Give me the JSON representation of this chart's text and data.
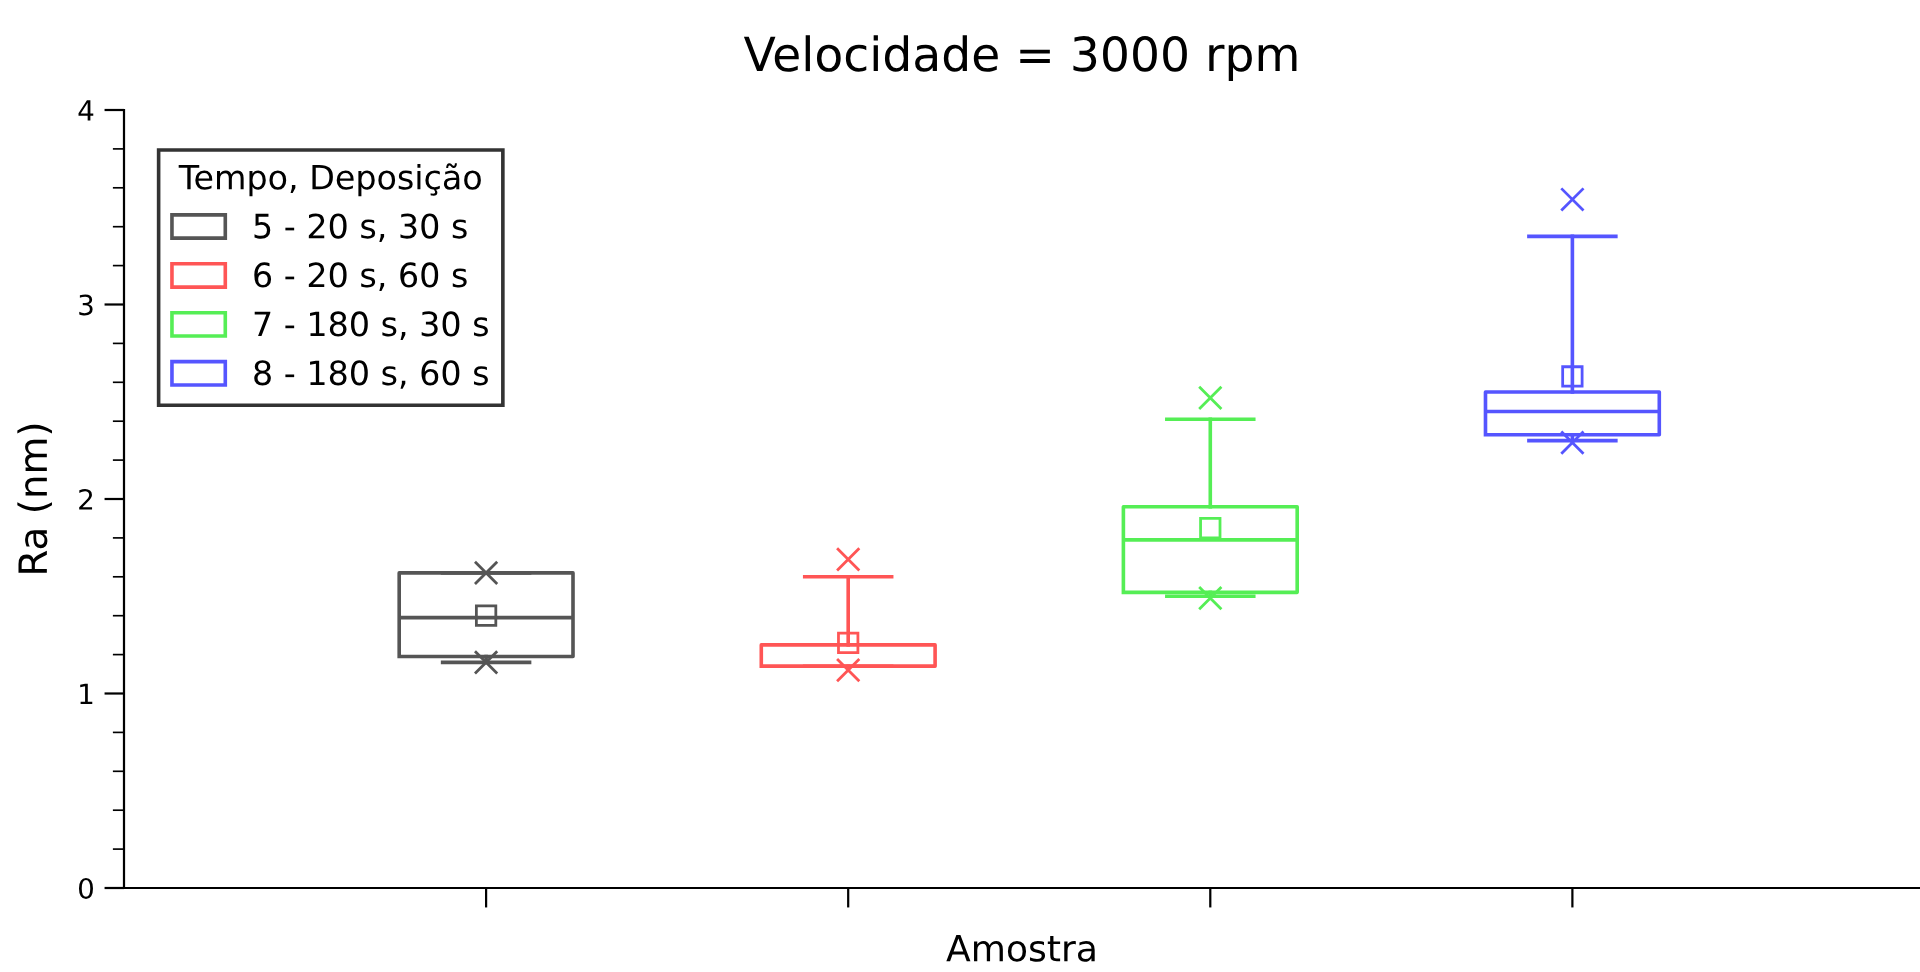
{
  "chart_data": {
    "type": "box",
    "title": "Velocidade = 3000 rpm",
    "xlabel": "Amostra",
    "ylabel": "Ra (nm)",
    "legend_title": "Tempo, Deposição",
    "legend": "top left",
    "categories": [
      null,
      null,
      null,
      null
    ],
    "ylim": [
      0,
      4
    ],
    "yticks": [
      0,
      1,
      2,
      3,
      4
    ],
    "grid": false,
    "series": [
      {
        "name": "5 - 20 s, 30 s",
        "color": "#555555",
        "boxes": [
          {
            "low": 1.16,
            "q1": 1.19,
            "median": 1.39,
            "q3": 1.62,
            "high": 1.62,
            "mean": 1.4,
            "outliers": [
              1.62,
              1.16
            ]
          },
          null,
          null,
          null
        ]
      },
      {
        "name": "6 - 20 s, 60 s",
        "color": "#ff5555",
        "boxes": [
          null,
          {
            "low": 1.14,
            "q1": 1.14,
            "median": 1.14,
            "q3": 1.25,
            "high": 1.6,
            "mean": 1.26,
            "outliers": [
              1.69,
              1.12
            ]
          },
          null,
          null
        ]
      },
      {
        "name": "7 - 180 s, 30 s",
        "color": "#55ee55",
        "boxes": [
          null,
          null,
          {
            "low": 1.5,
            "q1": 1.52,
            "median": 1.79,
            "q3": 1.96,
            "high": 2.41,
            "mean": 1.85,
            "outliers": [
              2.52,
              1.49
            ]
          },
          null
        ]
      },
      {
        "name": "8 - 180 s, 60 s",
        "color": "#5555ff",
        "boxes": [
          null,
          null,
          null,
          {
            "low": 2.3,
            "q1": 2.33,
            "median": 2.45,
            "q3": 2.55,
            "high": 3.35,
            "mean": 2.63,
            "outliers": [
              3.54,
              2.29
            ]
          }
        ]
      }
    ]
  }
}
